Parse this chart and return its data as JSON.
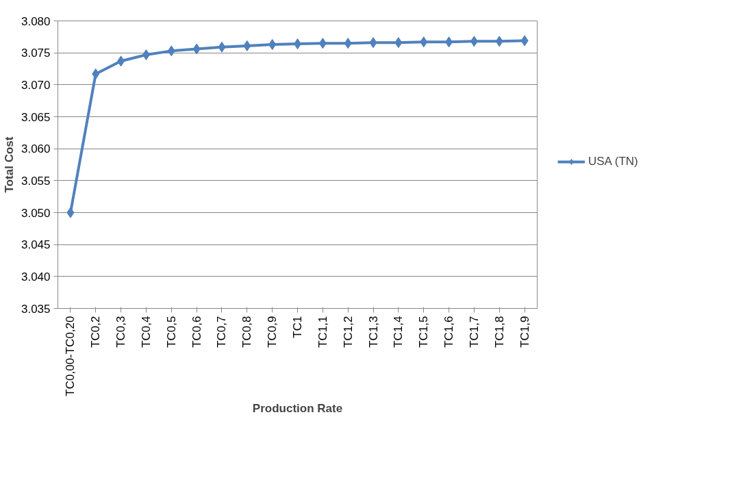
{
  "chart_data": {
    "type": "line",
    "xlabel": "Production Rate",
    "ylabel": "Total Cost",
    "categories": [
      "TC0,00-TC0,20",
      "TC0,2",
      "TC0,3",
      "TC0,4",
      "TC0,5",
      "TC0,6",
      "TC0,7",
      "TC0,8",
      "TC0,9",
      "TC1",
      "TC1,1",
      "TC1,2",
      "TC1,3",
      "TC1,4",
      "TC1,5",
      "TC1,6",
      "TC1,7",
      "TC1,8",
      "TC1,9"
    ],
    "series": [
      {
        "name": "USA (TN)",
        "color": "#4f81bd",
        "values": [
          3050,
          3071.7,
          3073.7,
          3074.7,
          3075.3,
          3075.6,
          3075.9,
          3076.1,
          3076.3,
          3076.4,
          3076.5,
          3076.5,
          3076.6,
          3076.6,
          3076.7,
          3076.7,
          3076.8,
          3076.8,
          3076.9
        ]
      }
    ],
    "ylim": [
      3035,
      3080
    ],
    "yticks": [
      {
        "value": 3035,
        "label": "3.035"
      },
      {
        "value": 3040,
        "label": "3.040"
      },
      {
        "value": 3045,
        "label": "3.045"
      },
      {
        "value": 3050,
        "label": "3.050"
      },
      {
        "value": 3055,
        "label": "3.055"
      },
      {
        "value": 3060,
        "label": "3.060"
      },
      {
        "value": 3065,
        "label": "3.065"
      },
      {
        "value": 3070,
        "label": "3.070"
      },
      {
        "value": 3075,
        "label": "3.075"
      },
      {
        "value": 3080,
        "label": "3.080"
      }
    ],
    "grid": "y",
    "legend": "right",
    "marker": "diamond",
    "line_style": "solid"
  }
}
